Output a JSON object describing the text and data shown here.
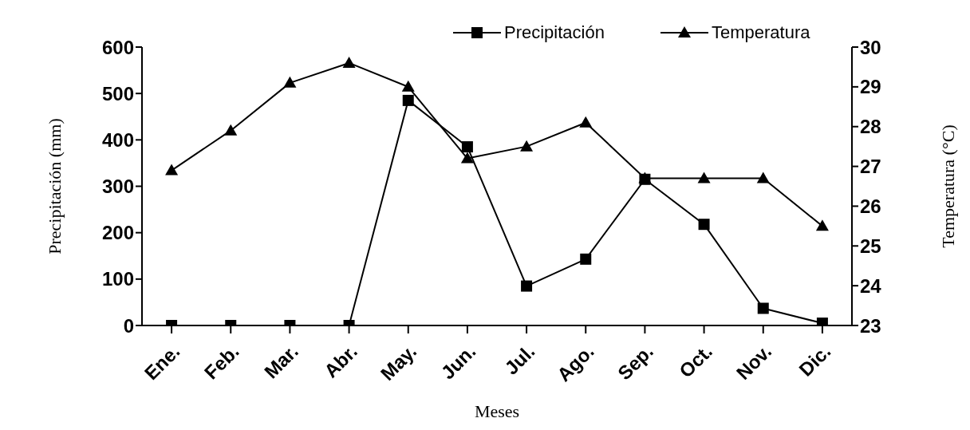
{
  "chart_data": {
    "type": "line",
    "xlabel": "Meses",
    "ylabel": "Precipitación (mm)",
    "y2label": "Temperatura (°C)",
    "categories": [
      "Ene.",
      "Feb.",
      "Mar.",
      "Abr.",
      "May.",
      "Jun.",
      "Jul.",
      "Ago.",
      "Sep.",
      "Oct.",
      "Nov.",
      "Dic."
    ],
    "series": [
      {
        "name": "Precipitación",
        "color": "#000000",
        "marker": "square",
        "values": [
          0,
          0,
          0,
          0,
          485,
          385,
          85,
          143,
          315,
          218,
          37,
          5
        ]
      },
      {
        "name": "Temperatura",
        "color": "#000000",
        "marker": "triangle",
        "axis": "y2",
        "values": [
          26.9,
          27.9,
          29.1,
          29.6,
          29.0,
          27.2,
          27.5,
          28.1,
          26.7,
          26.7,
          26.7,
          25.5
        ]
      }
    ],
    "ylim": [
      0,
      600
    ],
    "yticks": [
      0,
      100,
      200,
      300,
      400,
      500,
      600
    ],
    "y2lim": [
      23,
      30
    ],
    "y2ticks": [
      23,
      24,
      25,
      26,
      27,
      28,
      29,
      30
    ],
    "legend": "top right",
    "line_style": "solid"
  }
}
